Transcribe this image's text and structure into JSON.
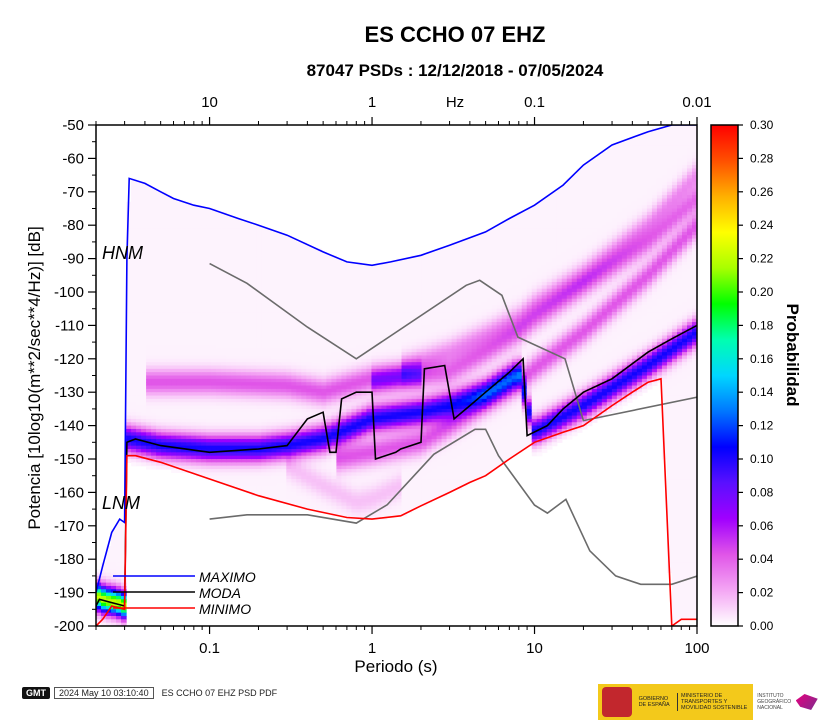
{
  "chart_data": {
    "type": "heatmap",
    "title": "ES CCHO 07 EHZ",
    "subtitle": "87047 PSDs : 12/12/2018 - 07/05/2024",
    "xlabel": "Periodo (s)",
    "ylabel": "Potencia [10log10(m**2/sec**4/Hz)] [dB]",
    "xscale": "log",
    "xlim": [
      0.02,
      100
    ],
    "ylim": [
      -200,
      -50
    ],
    "x_ticks": [
      "0.1",
      "1",
      "10",
      "100"
    ],
    "y_ticks": [
      "-50",
      "-60",
      "-70",
      "-80",
      "-90",
      "-100",
      "-110",
      "-120",
      "-130",
      "-140",
      "-150",
      "-160",
      "-170",
      "-180",
      "-190",
      "-200"
    ],
    "top_axis_label": "Hz",
    "top_ticks": [
      "10",
      "1",
      "0.1",
      "0.01"
    ],
    "colorbar": {
      "label": "Probabilidad",
      "range": [
        0,
        0.3
      ],
      "ticks": [
        "0.30",
        "0.28",
        "0.26",
        "0.24",
        "0.22",
        "0.20",
        "0.18",
        "0.16",
        "0.14",
        "0.12",
        "0.10",
        "0.08",
        "0.06",
        "0.04",
        "0.02",
        "0.00"
      ],
      "colors": [
        "#ffffff",
        "#f4a6f4",
        "#e055e8",
        "#a000ff",
        "#5a10ff",
        "#0000ff",
        "#0077ff",
        "#00d6ff",
        "#00ffb0",
        "#00ff00",
        "#a8ff00",
        "#ffff00",
        "#ffb000",
        "#ff5000",
        "#ff0000"
      ]
    },
    "models": [
      {
        "name": "HNM",
        "x": [
          0.1,
          0.17,
          0.4,
          0.8,
          3.8,
          4.6,
          6.3,
          7.9,
          15.4,
          20,
          354.8
        ],
        "y": [
          -91.5,
          -97.4,
          -110.5,
          -120,
          -98,
          -96.5,
          -101,
          -113.5,
          -120,
          -138.5,
          -126
        ]
      },
      {
        "name": "LNM",
        "x": [
          0.1,
          0.17,
          0.4,
          0.8,
          1.24,
          2.4,
          4.3,
          5,
          6,
          10,
          12,
          15.6,
          21.9,
          31.6,
          45,
          70,
          101,
          154
        ],
        "y": [
          -168,
          -166.7,
          -166.7,
          -169.2,
          -163.7,
          -148.6,
          -141.1,
          -141.1,
          -149,
          -163.8,
          -166.2,
          -162.1,
          -177.5,
          -185,
          -187.5,
          -187.5,
          -185,
          -185
        ]
      }
    ],
    "series": [
      {
        "name": "MAXIMO",
        "color": "#0000ff",
        "x": [
          0.02,
          0.022,
          0.025,
          0.028,
          0.03,
          0.031,
          0.032,
          0.04,
          0.05,
          0.06,
          0.08,
          0.1,
          0.15,
          0.2,
          0.3,
          0.5,
          0.7,
          1,
          1.3,
          2,
          3,
          5,
          7,
          10,
          15,
          20,
          30,
          50,
          70,
          100
        ],
        "y": [
          -190,
          -182,
          -172,
          -168,
          -169,
          -90,
          -66,
          -67.5,
          -70,
          -72,
          -74,
          -75,
          -78,
          -80,
          -83,
          -88,
          -91,
          -92,
          -91,
          -89,
          -86,
          -82,
          -78,
          -74,
          -68,
          -62,
          -56,
          -52,
          -50,
          -50
        ]
      },
      {
        "name": "MODA",
        "color": "#000000",
        "x": [
          0.02,
          0.021,
          0.025,
          0.03,
          0.031,
          0.035,
          0.05,
          0.1,
          0.2,
          0.3,
          0.4,
          0.5,
          0.55,
          0.6,
          0.65,
          0.8,
          1,
          1.05,
          1.4,
          1.5,
          2,
          2.1,
          2.8,
          3.2,
          4,
          5,
          7,
          8.5,
          9,
          12,
          15,
          20,
          30,
          50,
          70,
          100
        ],
        "y": [
          -194,
          -192,
          -193,
          -194,
          -145,
          -144,
          -146,
          -148,
          -147,
          -146,
          -138,
          -136,
          -148,
          -148,
          -132,
          -130,
          -130,
          -150,
          -148,
          -147,
          -145,
          -123,
          -122,
          -138,
          -134,
          -130,
          -124,
          -120,
          -143,
          -140,
          -135,
          -130,
          -126,
          -118,
          -114,
          -110
        ]
      },
      {
        "name": "MINIMO",
        "color": "#ff0000",
        "x": [
          0.02,
          0.022,
          0.025,
          0.03,
          0.031,
          0.035,
          0.05,
          0.1,
          0.2,
          0.4,
          0.7,
          1,
          1.5,
          2,
          3,
          4,
          5,
          7,
          10,
          15,
          20,
          30,
          40,
          50,
          60,
          70,
          80,
          100
        ],
        "y": [
          -200,
          -198,
          -194,
          -195,
          -149,
          -149,
          -151,
          -156,
          -161,
          -165,
          -167.5,
          -168,
          -167,
          -164,
          -160,
          -157,
          -155,
          -150,
          -145,
          -142,
          -140,
          -134,
          -130,
          -127,
          -126,
          -200,
          -198,
          -198
        ]
      }
    ],
    "modes": [
      {
        "x": [
          0.031,
          0.05,
          0.1,
          0.2,
          0.3,
          0.5,
          0.8,
          1,
          2,
          3,
          5,
          8,
          10,
          20,
          50,
          100
        ],
        "y": [
          -144,
          -146,
          -147,
          -147,
          -146,
          -144,
          -140,
          -138,
          -136,
          -134,
          -130,
          -124,
          -142,
          -134,
          -122,
          -112
        ],
        "p": 0.1
      },
      {
        "x": [
          0.04,
          0.1,
          0.3,
          0.5,
          0.7,
          1,
          1.5,
          2
        ],
        "y": [
          -127,
          -127,
          -128,
          -130,
          -128,
          -126,
          -125,
          -125
        ],
        "p": 0.04
      },
      {
        "x": [
          0.6,
          1,
          2,
          3,
          5,
          8,
          10,
          20,
          50,
          100
        ],
        "y": [
          -150,
          -148,
          -145,
          -140,
          -133,
          -127,
          -123,
          -112,
          -95,
          -80
        ],
        "p": 0.04
      },
      {
        "x": [
          1,
          2,
          3,
          5,
          8,
          10,
          20,
          50,
          100
        ],
        "y": [
          -127,
          -125,
          -124,
          -118,
          -112,
          -108,
          -98,
          -85,
          -72
        ],
        "p": 0.035
      },
      {
        "x": [
          1.5,
          3,
          5,
          8,
          10,
          20,
          50,
          100
        ],
        "y": [
          -123,
          -118,
          -113,
          -108,
          -104,
          -95,
          -80,
          -65
        ],
        "p": 0.025
      },
      {
        "x": [
          0.3,
          0.5,
          0.8,
          1,
          1.5
        ],
        "y": [
          -152,
          -158,
          -163,
          -162,
          -158
        ],
        "p": 0.012
      },
      {
        "x": [
          0.02,
          0.022,
          0.024,
          0.027,
          0.03
        ],
        "y": [
          -191,
          -192,
          -192.5,
          -193,
          -194
        ],
        "p": 0.22
      }
    ],
    "annotations": [
      "HNM",
      "LNM"
    ],
    "legend": [
      "MAXIMO",
      "MODA",
      "MINIMO"
    ]
  },
  "footer": {
    "logo": "GMT",
    "timestamp": "2024 May 10 03:10:40",
    "caption": "ES CCHO 07 EHZ PSD PDF"
  },
  "institutions": {
    "gov": "GOBIERNO DE ESPAÑA",
    "ministry": "MINISTERIO DE TRANSPORTES Y MOVILIDAD SOSTENIBLE",
    "ign": "INSTITUTO GEOGRÁFICO NACIONAL"
  }
}
